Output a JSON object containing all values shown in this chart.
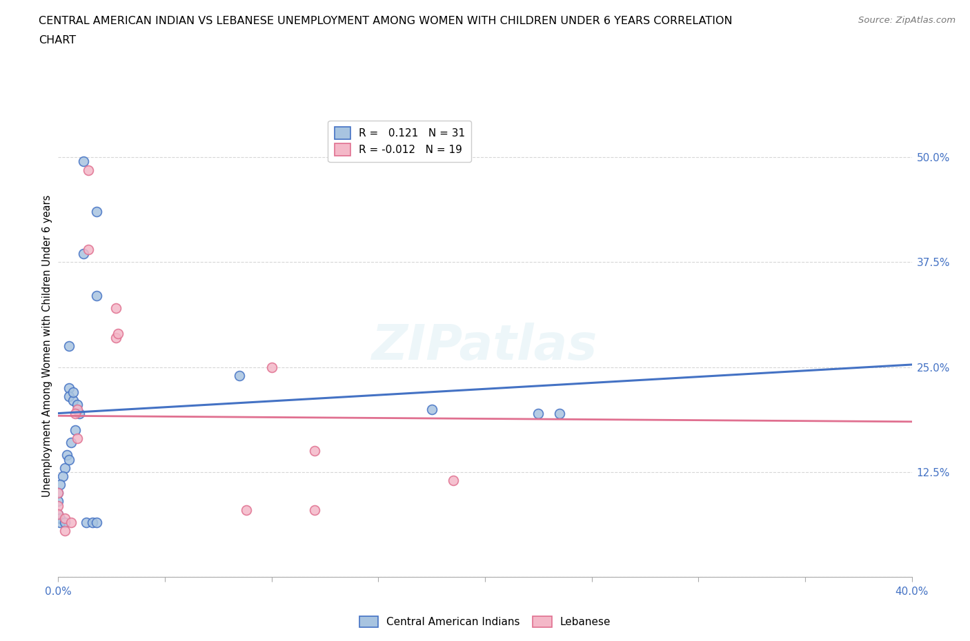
{
  "title_line1": "CENTRAL AMERICAN INDIAN VS LEBANESE UNEMPLOYMENT AMONG WOMEN WITH CHILDREN UNDER 6 YEARS CORRELATION",
  "title_line2": "CHART",
  "source_text": "Source: ZipAtlas.com",
  "ylabel": "Unemployment Among Women with Children Under 6 years",
  "xlim": [
    0.0,
    0.4
  ],
  "ylim": [
    0.0,
    0.55
  ],
  "yticks": [
    0.0,
    0.125,
    0.25,
    0.375,
    0.5
  ],
  "ytick_labels": [
    "",
    "12.5%",
    "25.0%",
    "37.5%",
    "50.0%"
  ],
  "xticks": [
    0.0,
    0.05,
    0.1,
    0.15,
    0.2,
    0.25,
    0.3,
    0.35,
    0.4
  ],
  "xtick_labels": [
    "0.0%",
    "",
    "",
    "",
    "",
    "",
    "",
    "",
    "40.0%"
  ],
  "blue_R": 0.121,
  "blue_N": 31,
  "pink_R": -0.012,
  "pink_N": 19,
  "blue_scatter_x": [
    0.012,
    0.018,
    0.012,
    0.018,
    0.005,
    0.005,
    0.007,
    0.009,
    0.01,
    0.008,
    0.006,
    0.004,
    0.003,
    0.002,
    0.001,
    0.0,
    0.0,
    0.0,
    0.001,
    0.001,
    0.013,
    0.016,
    0.018,
    0.003,
    0.005,
    0.007,
    0.085,
    0.175,
    0.225,
    0.235,
    0.005
  ],
  "blue_scatter_y": [
    0.495,
    0.435,
    0.385,
    0.335,
    0.225,
    0.215,
    0.21,
    0.205,
    0.195,
    0.175,
    0.16,
    0.145,
    0.13,
    0.12,
    0.11,
    0.1,
    0.09,
    0.075,
    0.07,
    0.065,
    0.065,
    0.065,
    0.065,
    0.065,
    0.14,
    0.22,
    0.24,
    0.2,
    0.195,
    0.195,
    0.275
  ],
  "pink_scatter_x": [
    0.014,
    0.014,
    0.027,
    0.027,
    0.028,
    0.009,
    0.009,
    0.008,
    0.0,
    0.0,
    0.0,
    0.003,
    0.003,
    0.006,
    0.1,
    0.185,
    0.12,
    0.12,
    0.088
  ],
  "pink_scatter_y": [
    0.485,
    0.39,
    0.32,
    0.285,
    0.29,
    0.2,
    0.165,
    0.195,
    0.1,
    0.085,
    0.075,
    0.07,
    0.055,
    0.065,
    0.25,
    0.115,
    0.15,
    0.08,
    0.08
  ],
  "blue_color": "#a8c4e0",
  "pink_color": "#f4b8c8",
  "blue_line_color": "#4472c4",
  "pink_line_color": "#e07090",
  "background_color": "#ffffff",
  "grid_color": "#cccccc",
  "marker_size": 100,
  "marker_linewidth": 1.2,
  "blue_line_start_x": 0.0,
  "blue_line_start_y": 0.195,
  "blue_line_end_x": 0.4,
  "blue_line_end_y": 0.253,
  "pink_line_start_x": 0.0,
  "pink_line_start_y": 0.192,
  "pink_line_end_x": 0.4,
  "pink_line_end_y": 0.185
}
